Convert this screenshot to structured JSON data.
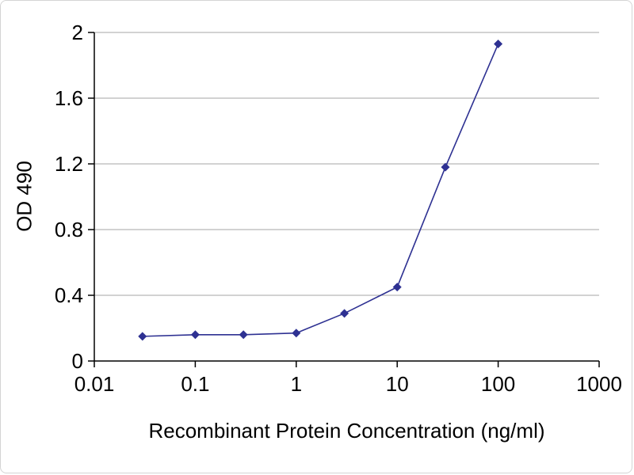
{
  "chart_data": {
    "type": "line",
    "title": "",
    "xlabel": "Recombinant Protein Concentration (ng/ml)",
    "ylabel": "OD 490",
    "x_scale": "log",
    "xlim": [
      0.01,
      1000
    ],
    "xlog_range": [
      -2,
      3
    ],
    "ylim": [
      0,
      2
    ],
    "yticks": [
      0,
      0.4,
      0.8,
      1.2,
      1.6,
      2
    ],
    "ytick_labels": [
      "0",
      "0.4",
      "0.8",
      "1.2",
      "1.6",
      "2"
    ],
    "xticks": [
      0.01,
      0.1,
      1,
      10,
      100,
      1000
    ],
    "xtick_labels": [
      "0.01",
      "0.1",
      "1",
      "10",
      "100",
      "1000"
    ],
    "grid": "horizontal",
    "legend": "none",
    "line_color": "#2e3192",
    "grid_color": "#a6a6a6",
    "axis_color": "#000000",
    "marker": "diamond",
    "series": [
      {
        "name": "OD 490",
        "x": [
          0.03,
          0.1,
          0.3,
          1,
          3,
          10,
          30,
          100
        ],
        "y": [
          0.15,
          0.16,
          0.16,
          0.17,
          0.29,
          0.45,
          1.18,
          1.93
        ]
      }
    ]
  }
}
